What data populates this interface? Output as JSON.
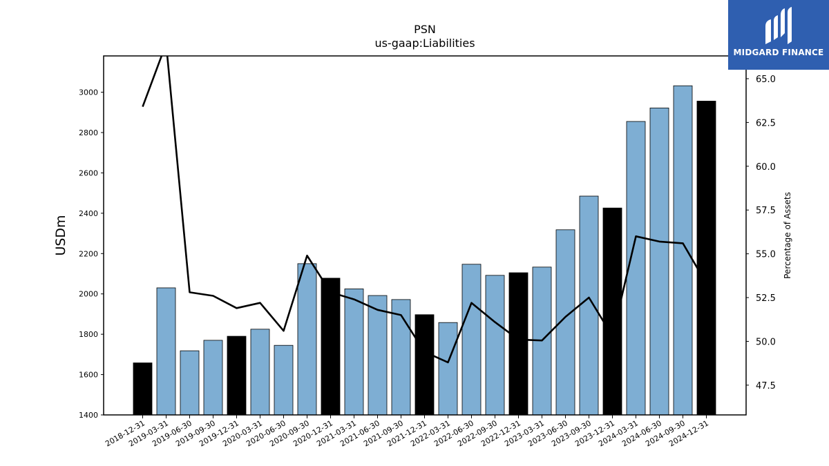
{
  "chart_data": {
    "type": "bar",
    "title": "PSN",
    "subtitle": "us-gaap:Liabilities",
    "ylabel": "USDm",
    "y2label": "Percentage of Assets",
    "ylim": [
      1400,
      3180
    ],
    "y2lim": [
      45.8,
      66.3
    ],
    "yticks": [
      1400,
      1600,
      1800,
      2000,
      2200,
      2400,
      2600,
      2800,
      3000
    ],
    "y2ticks": [
      "47.5",
      "50.0",
      "52.5",
      "55.0",
      "57.5",
      "60.0",
      "62.5",
      "65.0"
    ],
    "categories": [
      "2018-12-31",
      "2019-03-31",
      "2019-06-30",
      "2019-09-30",
      "2019-12-31",
      "2020-03-31",
      "2020-06-30",
      "2020-09-30",
      "2020-12-31",
      "2021-03-31",
      "2021-06-30",
      "2021-09-30",
      "2021-12-31",
      "2022-03-31",
      "2022-06-30",
      "2022-09-30",
      "2022-12-31",
      "2023-03-31",
      "2023-06-30",
      "2023-09-30",
      "2023-12-31",
      "2024-03-31",
      "2024-06-30",
      "2024-09-30",
      "2024-12-31"
    ],
    "series": [
      {
        "type": "bar",
        "axis": "left",
        "values": [
          1658,
          2030,
          1718,
          1770,
          1790,
          1825,
          1745,
          2150,
          2078,
          2025,
          1992,
          1972,
          1897,
          1858,
          2147,
          2092,
          2105,
          2133,
          2318,
          2485,
          2426,
          2855,
          2922,
          3032,
          2956
        ],
        "colors": [
          "#000000",
          "#7eaed3",
          "#7eaed3",
          "#7eaed3",
          "#000000",
          "#7eaed3",
          "#7eaed3",
          "#7eaed3",
          "#000000",
          "#7eaed3",
          "#7eaed3",
          "#7eaed3",
          "#000000",
          "#7eaed3",
          "#7eaed3",
          "#7eaed3",
          "#000000",
          "#7eaed3",
          "#7eaed3",
          "#7eaed3",
          "#000000",
          "#7eaed3",
          "#7eaed3",
          "#7eaed3",
          "#000000"
        ]
      },
      {
        "type": "line",
        "axis": "right",
        "color": "#000000",
        "values": [
          63.4,
          67.0,
          52.8,
          52.6,
          51.9,
          52.2,
          50.6,
          54.9,
          52.8,
          52.4,
          51.8,
          51.5,
          49.4,
          48.8,
          52.2,
          51.1,
          50.1,
          50.05,
          51.4,
          52.5,
          50.3,
          56.0,
          55.7,
          55.6,
          53.3
        ]
      }
    ],
    "grid": false,
    "legend": "none"
  },
  "logo": {
    "text": "MIDGARD FINANCE",
    "bg_color": "#2f5fb0"
  }
}
